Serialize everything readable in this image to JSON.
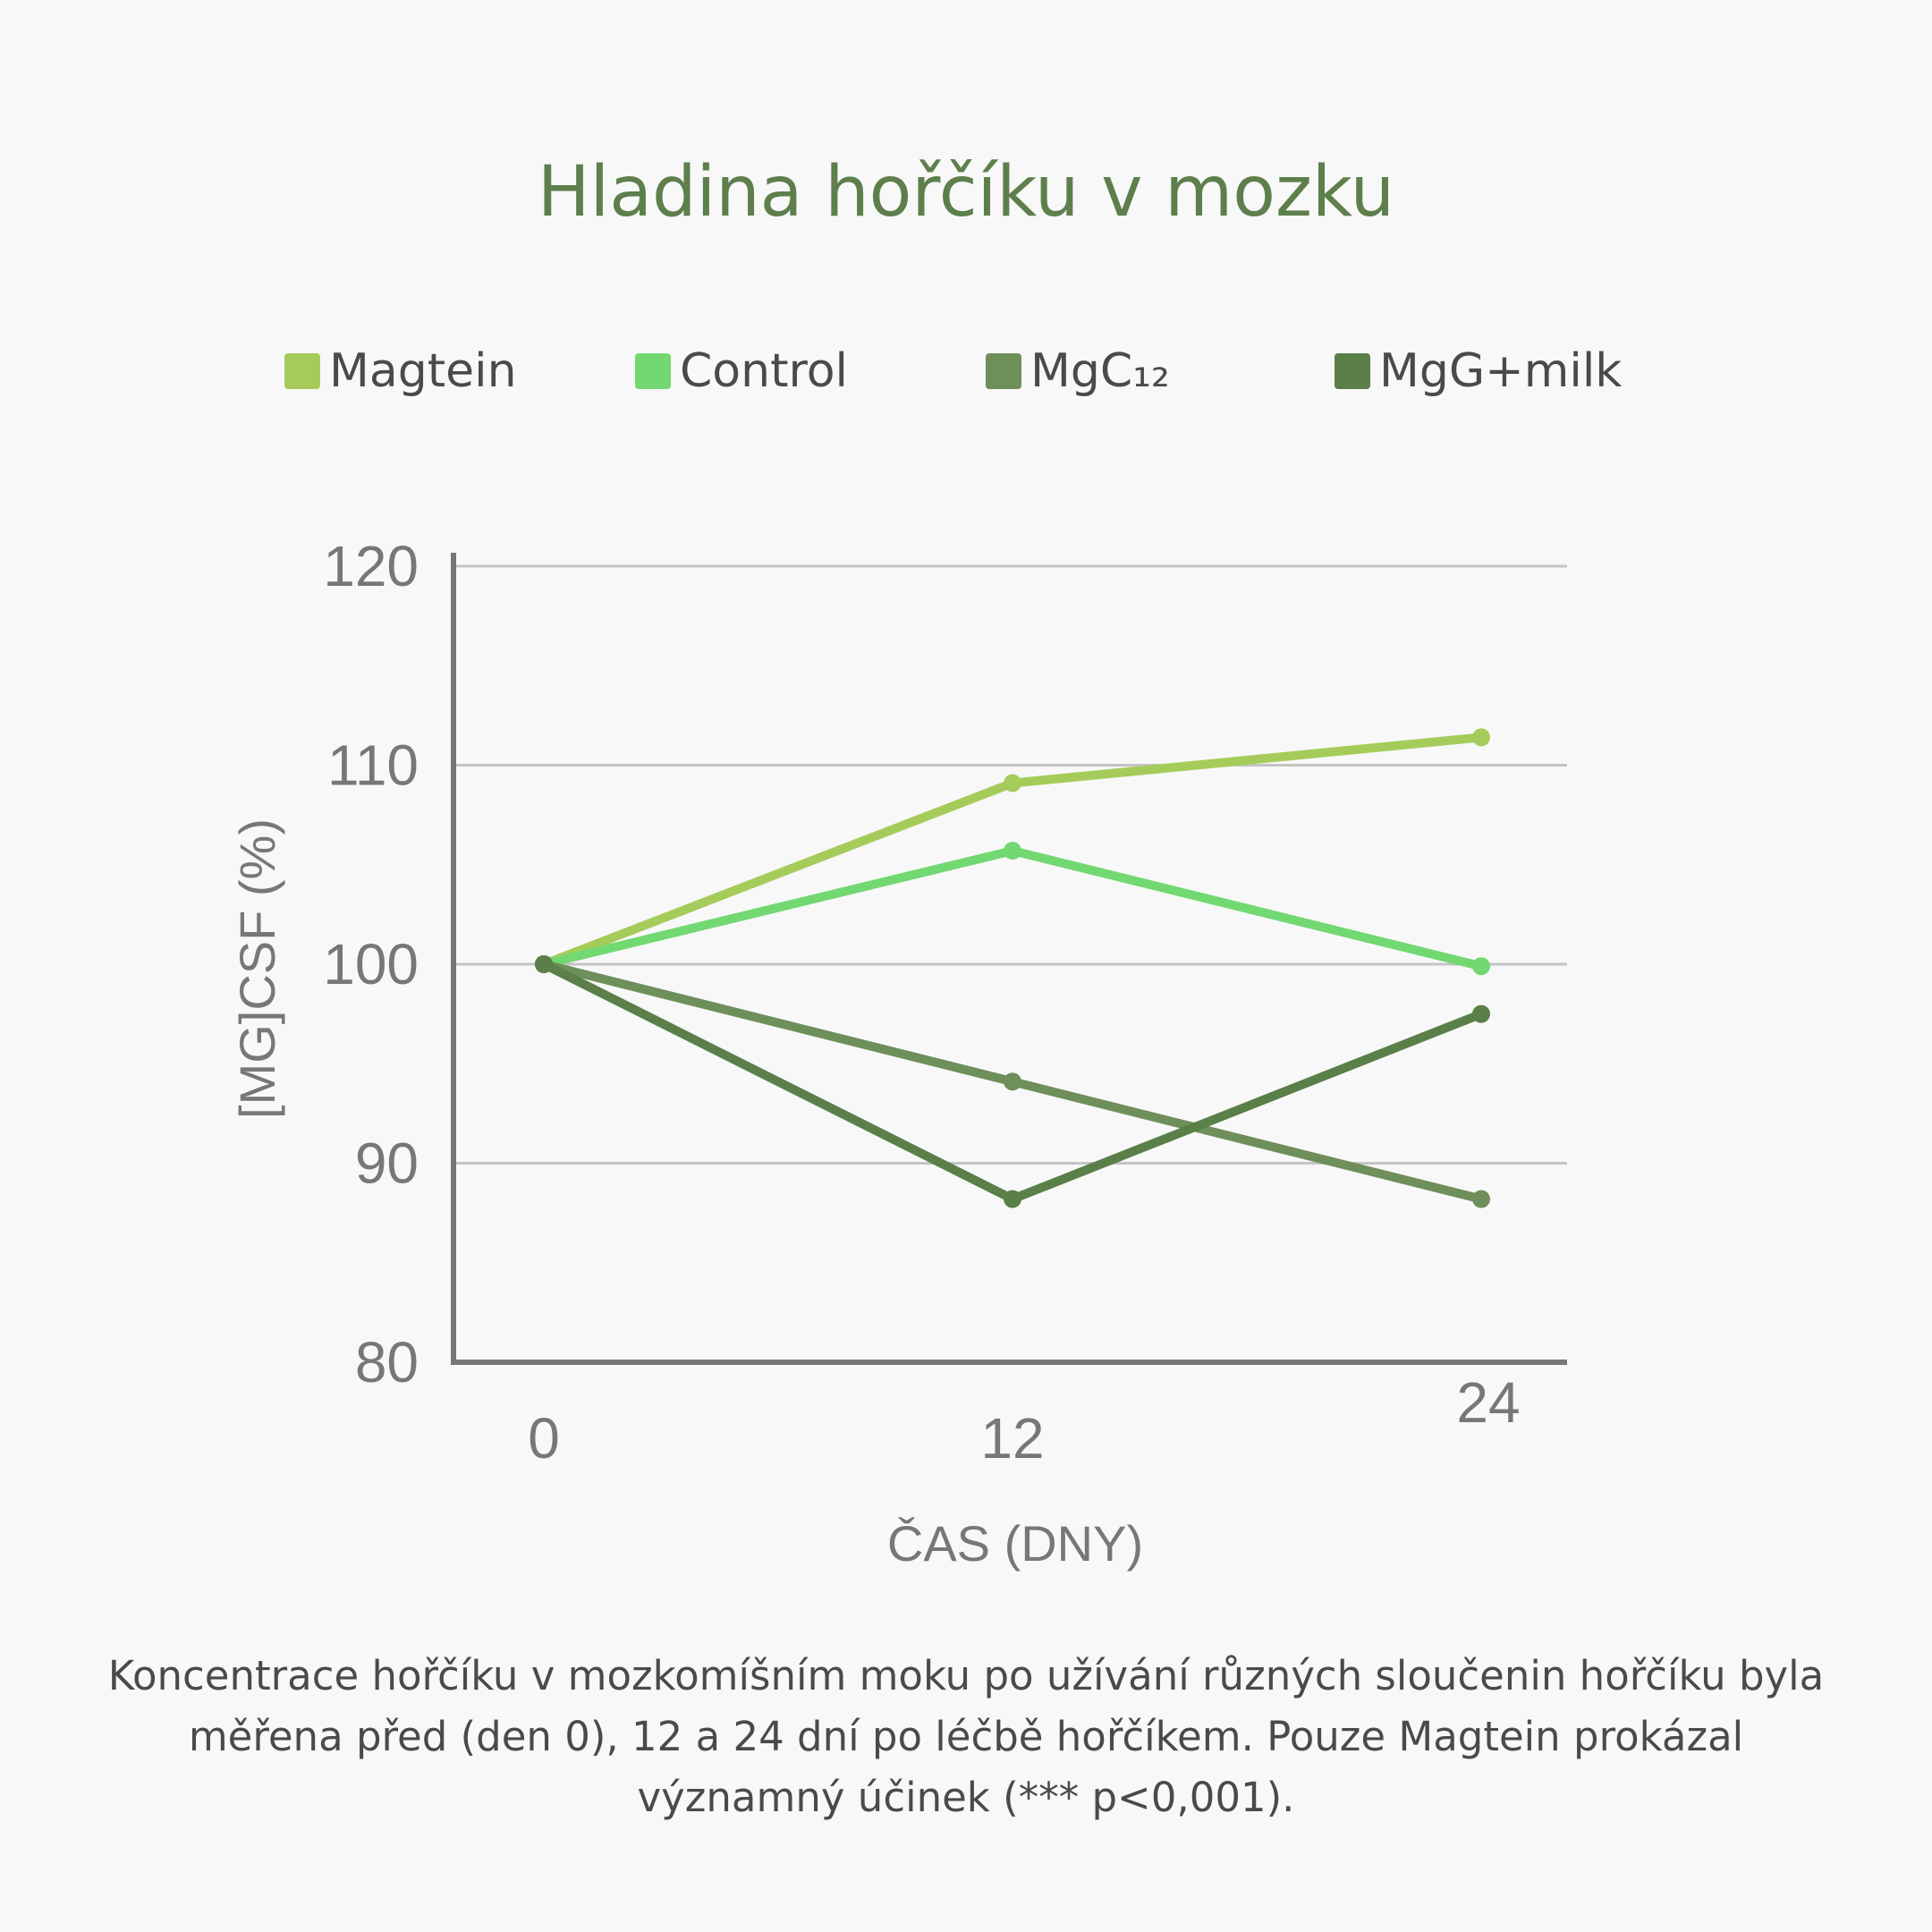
{
  "chart_data": {
    "type": "line",
    "title": "Hladina hořčíku v mozku",
    "xlabel": "ČAS (DNY)",
    "ylabel": "[MG]CSF (%)",
    "x": [
      0,
      12,
      24
    ],
    "x_tick_labels": [
      "0",
      "12",
      "24"
    ],
    "y_ticks": [
      80,
      90,
      100,
      110,
      120
    ],
    "ylim": [
      80,
      120
    ],
    "grid": true,
    "legend_position": "top",
    "series": [
      {
        "name": "Magtein",
        "color": "#a5cc5a",
        "values": [
          100,
          109.1,
          111.4
        ]
      },
      {
        "name": "Control",
        "color": "#72d872",
        "values": [
          100,
          105.7,
          99.9
        ]
      },
      {
        "name": "MgC₁₂",
        "color": "#6f8f5a",
        "values": [
          100,
          94.1,
          88.2
        ]
      },
      {
        "name": "MgG+milk",
        "color": "#5a7f48",
        "values": [
          100,
          88.2,
          97.5
        ]
      }
    ]
  },
  "caption": "Koncentrace hořčíku v mozkomíšním moku po užívání různých sloučenin hořčíku byla měřena před (den 0), 12 a 24 dní po léčbě hořčíkem. Pouze Magtein prokázal významný účinek (*** p<0,001)."
}
